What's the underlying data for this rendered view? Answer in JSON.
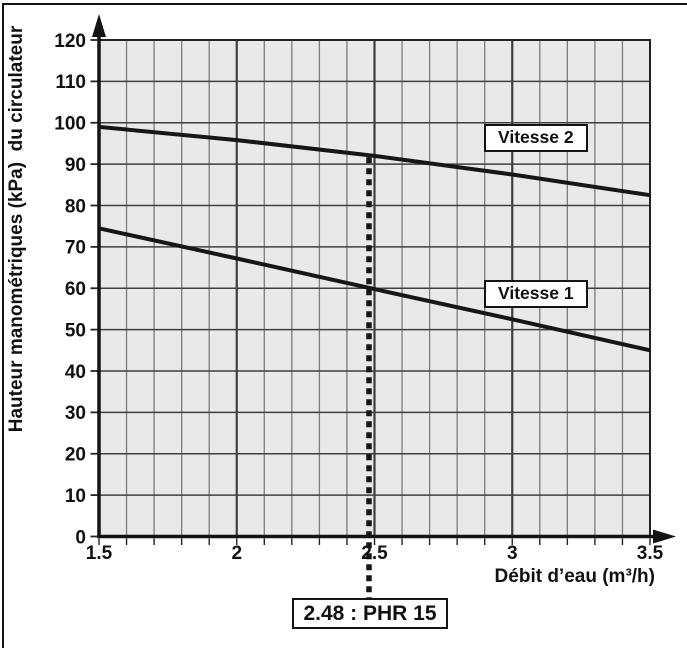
{
  "chart_data": {
    "type": "line",
    "title": "",
    "xlabel": "Débit d’eau (m³/h)",
    "ylabel": "Hauteur manométriques (kPa)  du circulateur",
    "xlim": [
      1.5,
      3.5
    ],
    "ylim": [
      0,
      120
    ],
    "x_ticks": [
      1.5,
      2,
      2.5,
      3,
      3.5
    ],
    "x_tick_labels": [
      "1.5",
      "2",
      "2.5",
      "3",
      "3.5"
    ],
    "x_minor_step": 0.1,
    "y_ticks": [
      0,
      10,
      20,
      30,
      40,
      50,
      60,
      70,
      80,
      90,
      100,
      110,
      120
    ],
    "grid": "minor vertical every 0.1, major vertical at labeled ticks, horizontal every 10",
    "legend_position": "labels in boxes on plot",
    "series": [
      {
        "name": "Vitesse 2",
        "points": [
          [
            1.5,
            99
          ],
          [
            2.0,
            95.8
          ],
          [
            2.5,
            92
          ],
          [
            3.0,
            87.5
          ],
          [
            3.5,
            82.5
          ]
        ]
      },
      {
        "name": "Vitesse 1",
        "points": [
          [
            1.5,
            74.5
          ],
          [
            2.0,
            67.2
          ],
          [
            2.5,
            59.8
          ],
          [
            3.0,
            52.5
          ],
          [
            3.5,
            45
          ]
        ]
      }
    ],
    "annotation": {
      "x": 2.48,
      "label": "2.48 : PHR 15",
      "style": "vertical dashed line from Vitesse 2 curve down to label box below axis"
    },
    "colors": {
      "plot_bg": "#e9e9e9",
      "minor_grid": "#7d7d7d",
      "major_grid": "#3f3f3f",
      "axis": "#141414",
      "curve": "#161616",
      "text": "#111111"
    }
  }
}
